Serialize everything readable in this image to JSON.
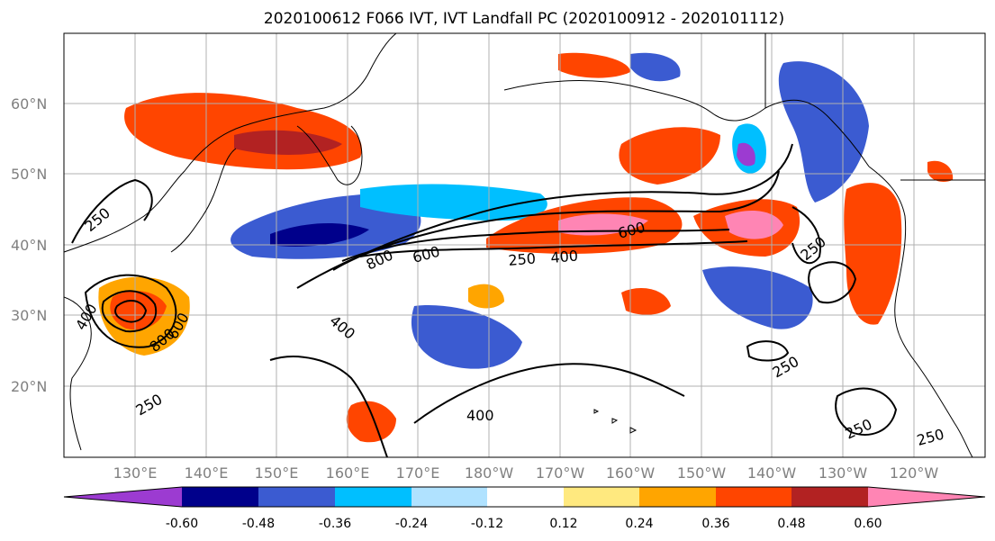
{
  "map": {
    "title": "2020100612 F066 IVT, IVT Landfall PC (2020100912 - 2020101112)",
    "lat_labels": [
      "20°N",
      "30°N",
      "40°N",
      "50°N",
      "60°N"
    ],
    "lon_labels": [
      "130°E",
      "140°E",
      "150°E",
      "160°E",
      "170°E",
      "180°W",
      "170°W",
      "160°W",
      "150°W",
      "140°W",
      "130°W",
      "120°W"
    ],
    "contour_labels": [
      "250",
      "400",
      "600",
      "800",
      "250",
      "400",
      "600",
      "800",
      "250",
      "400",
      "600",
      "250",
      "250",
      "250",
      "250",
      "400"
    ]
  },
  "colorbar": {
    "colors": [
      "#9c3bd1",
      "#00008b",
      "#3b5bd1",
      "#00bfff",
      "#b0e2ff",
      "#ffffff",
      "#ffe97f",
      "#ffa500",
      "#ff4500",
      "#b22222",
      "#ff85b4"
    ],
    "tick_labels": [
      "-0.60",
      "-0.48",
      "-0.36",
      "-0.24",
      "-0.12",
      "0.12",
      "0.24",
      "0.36",
      "0.48",
      "0.60"
    ]
  }
}
